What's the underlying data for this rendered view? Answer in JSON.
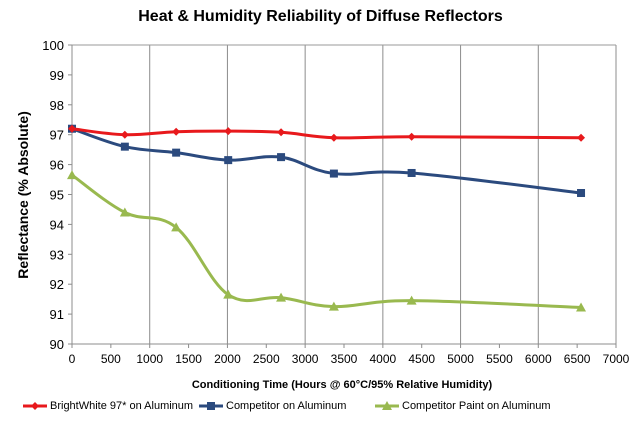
{
  "chart_data": {
    "type": "line",
    "title": "Heat & Humidity Reliability of Diffuse Reflectors",
    "xlabel": "Conditioning Time (Hours @ 60°C/95% Relative Humidity)",
    "ylabel": "Reflectance (% Absolute)",
    "xlim": [
      0,
      7000
    ],
    "ylim": [
      90,
      100
    ],
    "xticks": [
      "0",
      "500",
      "1000",
      "1500",
      "2000",
      "2500",
      "3000",
      "3500",
      "4000",
      "4500",
      "5000",
      "5500",
      "6000",
      "6500",
      "7000"
    ],
    "yticks": [
      "90",
      "91",
      "92",
      "93",
      "94",
      "95",
      "96",
      "97",
      "98",
      "99",
      "100"
    ],
    "grid": "vertical",
    "legend_position": "bottom",
    "series": [
      {
        "name": "BrightWhite 97* on Aluminum",
        "color": "#e8191c",
        "marker": "diamond",
        "x": [
          0,
          680,
          1340,
          2010,
          2690,
          3370,
          4370,
          6550
        ],
        "y": [
          97.2,
          97.0,
          97.1,
          97.12,
          97.08,
          96.9,
          96.93,
          96.9
        ]
      },
      {
        "name": "Competitor  on Aluminum",
        "color": "#2b4a7e",
        "marker": "square",
        "x": [
          0,
          680,
          1340,
          2010,
          2690,
          3370,
          4370,
          6550
        ],
        "y": [
          97.2,
          96.6,
          96.4,
          96.15,
          96.25,
          95.7,
          95.72,
          95.05
        ]
      },
      {
        "name": "Competitor Paint on Aluminum",
        "color": "#99b94f",
        "marker": "triangle",
        "x": [
          0,
          680,
          1340,
          2010,
          2690,
          3370,
          4370,
          6550
        ],
        "y": [
          95.65,
          94.4,
          93.9,
          91.65,
          91.55,
          91.25,
          91.45,
          91.22
        ]
      }
    ]
  }
}
